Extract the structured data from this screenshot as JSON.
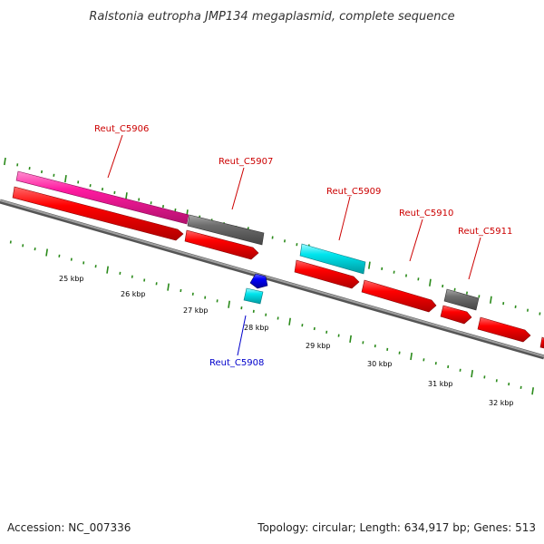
{
  "title": "Ralstonia eutropha JMP134 megaplasmid, complete sequence",
  "footer": {
    "accession": "Accession: NC_007336",
    "summary": "Topology: circular; Length: 634,917 bp; Genes: 513"
  },
  "colors": {
    "backbone": "#8a8a8a",
    "tick": "#2a8a1a",
    "cds_red": "#ff0000",
    "cds_magenta": "#ff1aa0",
    "cds_gray": "#6e6e6e",
    "cds_cyan": "#00e5ee",
    "cds_blue": "#0000ff",
    "label_red": "#cc0000",
    "label_blue": "#0000cc"
  },
  "kbp_labels": [
    "25 kbp",
    "26 kbp",
    "27 kbp",
    "28 kbp",
    "29 kbp",
    "30 kbp",
    "31 kbp",
    "32 kbp"
  ],
  "gene_labels": [
    {
      "name": "Reut_C5906",
      "color": "red"
    },
    {
      "name": "Reut_C5907",
      "color": "red"
    },
    {
      "name": "Reut_C5908",
      "color": "blue"
    },
    {
      "name": "Reut_C5909",
      "color": "red"
    },
    {
      "name": "Reut_C5910",
      "color": "red"
    },
    {
      "name": "Reut_C5911",
      "color": "red"
    }
  ],
  "features": [
    {
      "track": "cog",
      "color": "magenta"
    },
    {
      "track": "cog",
      "color": "gray"
    },
    {
      "track": "cog",
      "color": "cyan"
    },
    {
      "track": "cog",
      "color": "gray"
    },
    {
      "track": "cds",
      "color": "red"
    },
    {
      "track": "cds",
      "color": "red"
    },
    {
      "track": "cds",
      "color": "red"
    },
    {
      "track": "cds",
      "color": "red"
    },
    {
      "track": "cds",
      "color": "red"
    },
    {
      "track": "cds",
      "color": "red"
    },
    {
      "track": "cds",
      "color": "red"
    },
    {
      "track": "rev",
      "color": "blue"
    },
    {
      "track": "rev",
      "color": "cyan"
    }
  ]
}
